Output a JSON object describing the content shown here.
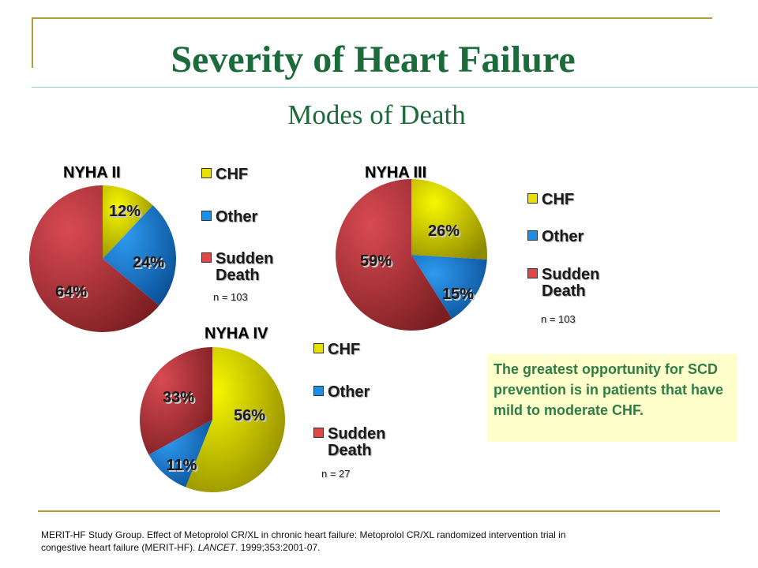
{
  "title": "Severity of Heart Failure",
  "subtitle": "Modes of Death",
  "colors": {
    "title": "#1b6b3b",
    "chf": "#e8e000",
    "other": "#1e8fe6",
    "sudden_death": "#e04848",
    "callout_bg": "#ffffcc",
    "callout_text": "#2e7d46",
    "rule": "#b59a3a"
  },
  "chart_data": [
    {
      "type": "pie",
      "title": "NYHA II",
      "categories": [
        "CHF",
        "Other",
        "Sudden Death"
      ],
      "values": [
        12,
        24,
        64
      ],
      "value_labels": [
        "12%",
        "24%",
        "64%"
      ],
      "legend": {
        "items": [
          "CHF",
          "Other",
          "Sudden Death"
        ],
        "position": "right",
        "note": "n = 103"
      }
    },
    {
      "type": "pie",
      "title": "NYHA III",
      "categories": [
        "CHF",
        "Other",
        "Sudden Death"
      ],
      "values": [
        26,
        15,
        59
      ],
      "value_labels": [
        "26%",
        "15%",
        "59%"
      ],
      "legend": {
        "items": [
          "CHF",
          "Other",
          "Sudden Death"
        ],
        "position": "right",
        "note": "n = 103"
      }
    },
    {
      "type": "pie",
      "title": "NYHA IV",
      "categories": [
        "CHF",
        "Other",
        "Sudden Death"
      ],
      "values": [
        56,
        11,
        33
      ],
      "value_labels": [
        "56%",
        "11%",
        "33%"
      ],
      "legend": {
        "items": [
          "CHF",
          "Other",
          "Sudden Death"
        ],
        "position": "right",
        "note": "n = 27"
      }
    }
  ],
  "callout": "The greatest opportunity for SCD prevention is in patients that have mild to moderate CHF.",
  "citation": {
    "text": "MERIT-HF Study Group.  Effect of Metoprolol CR/XL in chronic heart failure: Metoprolol CR/XL randomized intervention trial in congestive heart failure (MERIT-HF).",
    "journal": "LANCET",
    "ref": ".  1999;353:2001-07."
  }
}
